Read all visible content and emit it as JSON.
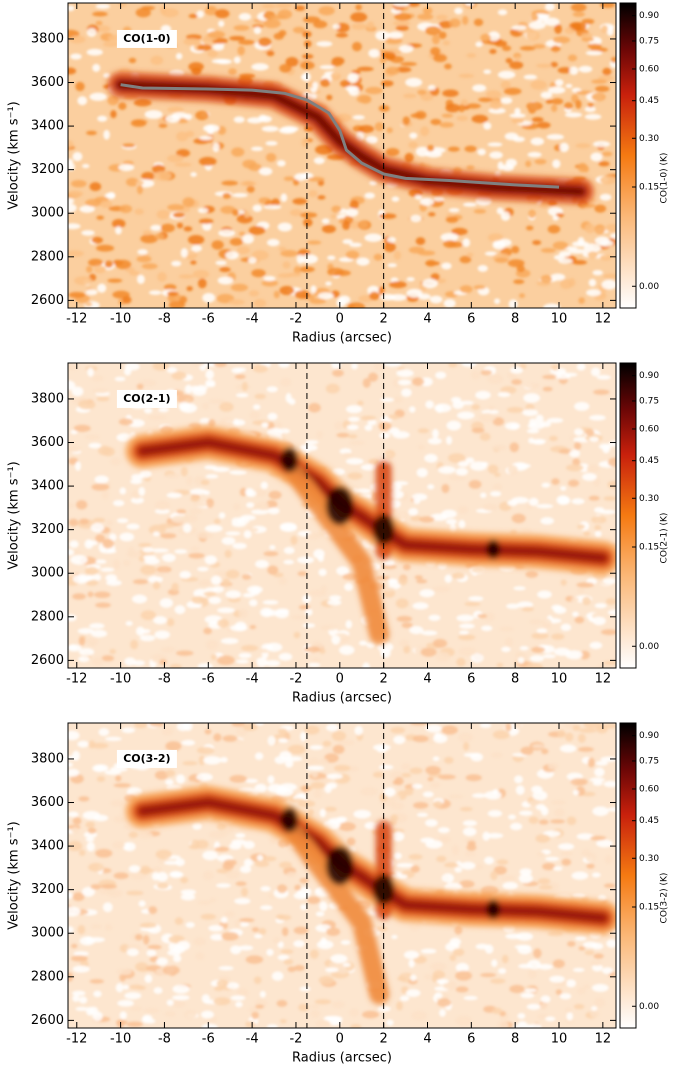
{
  "chart_data": [
    {
      "type": "heatmap",
      "label": "CO(1-0)",
      "xlabel": "Radius (arcsec)",
      "ylabel": "Velocity (km s⁻¹)",
      "colorbar_label": "CO(1-0) (K)",
      "xlim": [
        -12.4,
        12.6
      ],
      "xticks": [
        -12,
        -10,
        -8,
        -6,
        -4,
        -2,
        0,
        2,
        4,
        6,
        8,
        10,
        12
      ],
      "ylim": [
        2565,
        3965
      ],
      "yticks": [
        2600,
        2800,
        3000,
        3200,
        3400,
        3600,
        3800
      ],
      "clim": [
        -0.005,
        0.98
      ],
      "colorbar_scale": "sqrt",
      "colorbar_ticks": [
        {
          "value": 0,
          "label": "0.00"
        },
        {
          "value": 0.15,
          "label": "0.15"
        },
        {
          "value": 0.3,
          "label": "0.30"
        },
        {
          "value": 0.45,
          "label": "0.45"
        },
        {
          "value": 0.6,
          "label": "0.60"
        },
        {
          "value": 0.75,
          "label": "0.75"
        },
        {
          "value": 0.9,
          "label": "0.90"
        }
      ],
      "vlines": [
        -1.5,
        2
      ],
      "rotation_curve": {
        "color": "#808080",
        "x": [
          -10,
          -9,
          -6,
          -4,
          -2.5,
          -1.5,
          -0.5,
          0,
          0.3,
          1,
          2,
          3,
          5,
          8,
          10
        ],
        "values": [
          3590,
          3575,
          3570,
          3565,
          3550,
          3520,
          3460,
          3380,
          3290,
          3230,
          3180,
          3160,
          3150,
          3130,
          3120
        ]
      }
    },
    {
      "type": "heatmap",
      "label": "CO(2-1)",
      "xlabel": "Radius (arcsec)",
      "ylabel": "Velocity (km s⁻¹)",
      "colorbar_label": "CO(2-1) (K)",
      "xlim": [
        -12.4,
        12.6
      ],
      "xticks": [
        -12,
        -10,
        -8,
        -6,
        -4,
        -2,
        0,
        2,
        4,
        6,
        8,
        10,
        12
      ],
      "ylim": [
        2565,
        3965
      ],
      "yticks": [
        2600,
        2800,
        3000,
        3200,
        3400,
        3600,
        3800
      ],
      "clim": [
        -0.005,
        0.98
      ],
      "colorbar_scale": "sqrt",
      "colorbar_ticks": [
        {
          "value": 0,
          "label": "0.00"
        },
        {
          "value": 0.15,
          "label": "0.15"
        },
        {
          "value": 0.3,
          "label": "0.30"
        },
        {
          "value": 0.45,
          "label": "0.45"
        },
        {
          "value": 0.6,
          "label": "0.60"
        },
        {
          "value": 0.75,
          "label": "0.75"
        },
        {
          "value": 0.9,
          "label": "0.90"
        }
      ],
      "vlines": [
        -1.5,
        2
      ]
    },
    {
      "type": "heatmap",
      "label": "CO(3-2)",
      "xlabel": "Radius (arcsec)",
      "ylabel": "Velocity (km s⁻¹)",
      "colorbar_label": "CO(3-2) (K)",
      "xlim": [
        -12.4,
        12.6
      ],
      "xticks": [
        -12,
        -10,
        -8,
        -6,
        -4,
        -2,
        0,
        2,
        4,
        6,
        8,
        10,
        12
      ],
      "ylim": [
        2565,
        3965
      ],
      "yticks": [
        2600,
        2800,
        3000,
        3200,
        3400,
        3600,
        3800
      ],
      "clim": [
        -0.005,
        0.98
      ],
      "colorbar_scale": "sqrt",
      "colorbar_ticks": [
        {
          "value": 0,
          "label": "0.00"
        },
        {
          "value": 0.15,
          "label": "0.15"
        },
        {
          "value": 0.3,
          "label": "0.30"
        },
        {
          "value": 0.45,
          "label": "0.45"
        },
        {
          "value": 0.6,
          "label": "0.60"
        },
        {
          "value": 0.75,
          "label": "0.75"
        },
        {
          "value": 0.9,
          "label": "0.90"
        }
      ],
      "vlines": [
        -1.5,
        2
      ]
    }
  ]
}
